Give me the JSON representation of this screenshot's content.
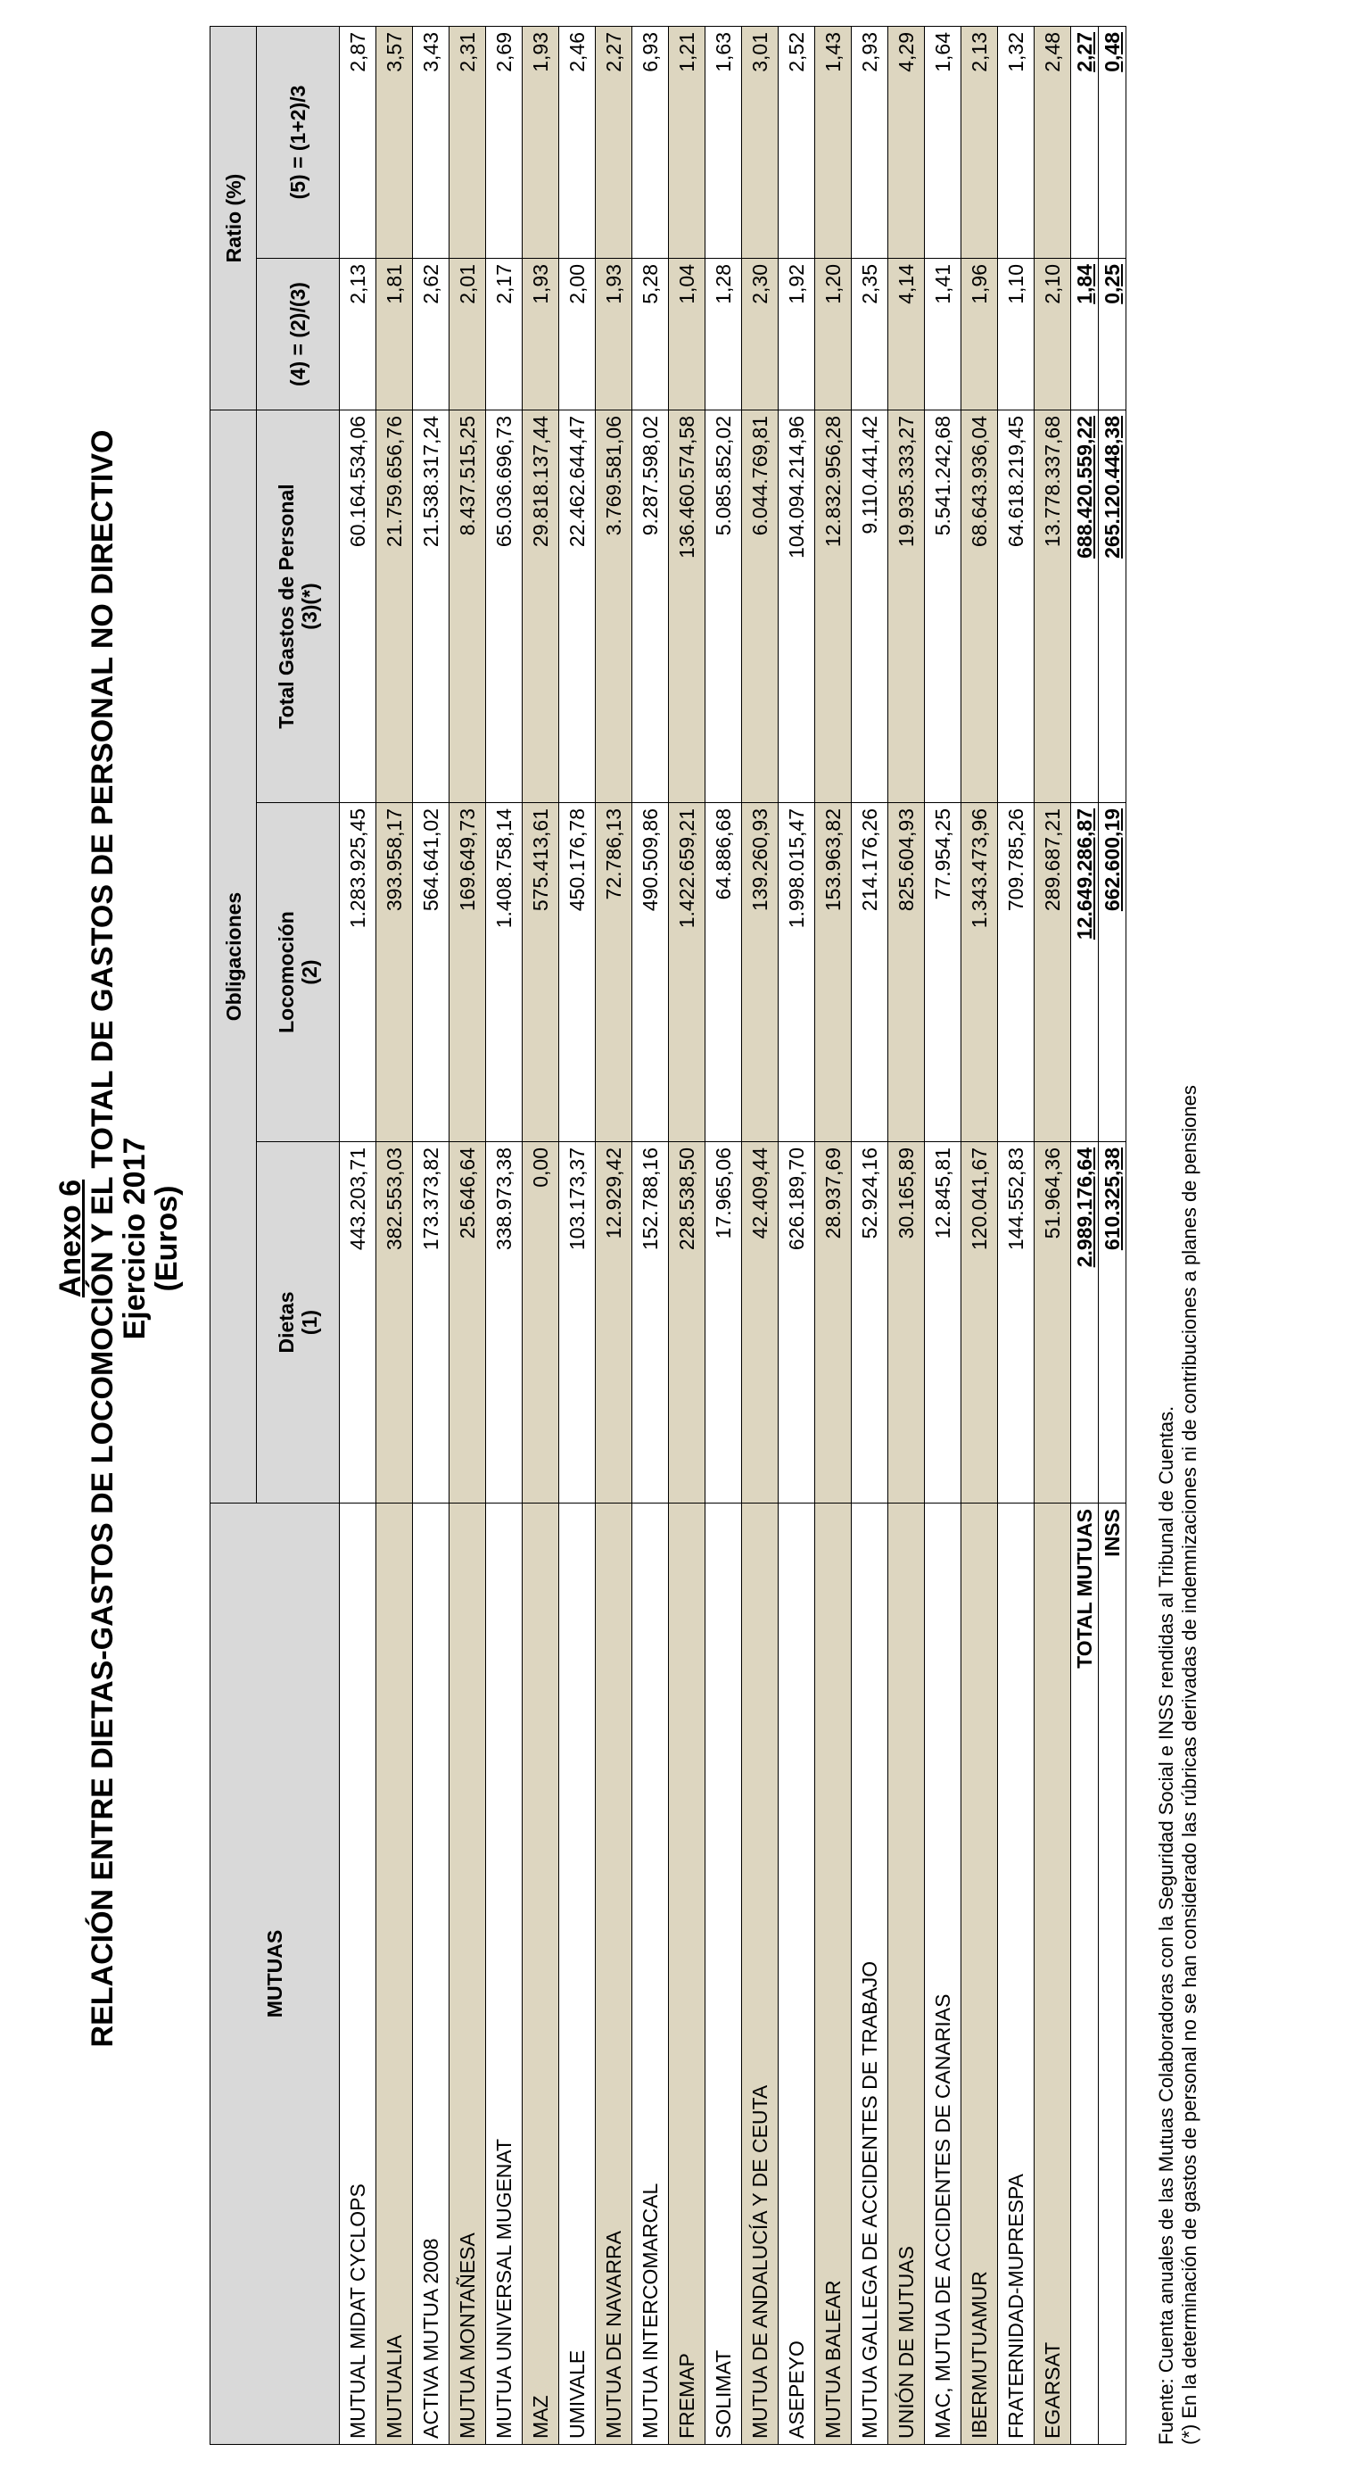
{
  "header": {
    "annex": "Anexo 6",
    "title": "RELACIÓN ENTRE DIETAS-GASTOS DE LOCOMOCIÓN Y EL TOTAL DE GASTOS DE PERSONAL NO DIRECTIVO",
    "year": "Ejercicio 2017",
    "unit": "(Euros)"
  },
  "table": {
    "group_headers": {
      "entity": "MUTUAS",
      "obligations": "Obligaciones",
      "ratio": "Ratio (%)"
    },
    "columns": [
      [
        "Dietas",
        "(1)"
      ],
      [
        "Locomoción",
        "(2)"
      ],
      [
        "Total Gastos de Personal",
        "(3)(*)"
      ],
      [
        "(4) = (2)/(3)"
      ],
      [
        "(5) = (1+2)/3"
      ]
    ],
    "rows": [
      [
        "MUTUAL MIDAT CYCLOPS",
        "443.203,71",
        "1.283.925,45",
        "60.164.534,06",
        "2,13",
        "2,87"
      ],
      [
        "MUTUALIA",
        "382.553,03",
        "393.958,17",
        "21.759.656,76",
        "1,81",
        "3,57"
      ],
      [
        "ACTIVA MUTUA 2008",
        "173.373,82",
        "564.641,02",
        "21.538.317,24",
        "2,62",
        "3,43"
      ],
      [
        "MUTUA MONTAÑESA",
        "25.646,64",
        "169.649,73",
        "8.437.515,25",
        "2,01",
        "2,31"
      ],
      [
        "MUTUA UNIVERSAL MUGENAT",
        "338.973,38",
        "1.408.758,14",
        "65.036.696,73",
        "2,17",
        "2,69"
      ],
      [
        "MAZ",
        "0,00",
        "575.413,61",
        "29.818.137,44",
        "1,93",
        "1,93"
      ],
      [
        "UMIVALE",
        "103.173,37",
        "450.176,78",
        "22.462.644,47",
        "2,00",
        "2,46"
      ],
      [
        "MUTUA DE NAVARRA",
        "12.929,42",
        "72.786,13",
        "3.769.581,06",
        "1,93",
        "2,27"
      ],
      [
        "MUTUA INTERCOMARCAL",
        "152.788,16",
        "490.509,86",
        "9.287.598,02",
        "5,28",
        "6,93"
      ],
      [
        "FREMAP",
        "228.538,50",
        "1.422.659,21",
        "136.460.574,58",
        "1,04",
        "1,21"
      ],
      [
        "SOLIMAT",
        "17.965,06",
        "64.886,68",
        "5.085.852,02",
        "1,28",
        "1,63"
      ],
      [
        "MUTUA DE ANDALUCÍA Y DE CEUTA",
        "42.409,44",
        "139.260,93",
        "6.044.769,81",
        "2,30",
        "3,01"
      ],
      [
        "ASEPEYO",
        "626.189,70",
        "1.998.015,47",
        "104.094.214,96",
        "1,92",
        "2,52"
      ],
      [
        "MUTUA BALEAR",
        "28.937,69",
        "153.963,82",
        "12.832.956,28",
        "1,20",
        "1,43"
      ],
      [
        "MUTUA GALLEGA DE ACCIDENTES DE TRABAJO",
        "52.924,16",
        "214.176,26",
        "9.110.441,42",
        "2,35",
        "2,93"
      ],
      [
        "UNIÓN DE MUTUAS",
        "30.165,89",
        "825.604,93",
        "19.935.333,27",
        "4,14",
        "4,29"
      ],
      [
        "MAC, MUTUA DE ACCIDENTES DE CANARIAS",
        "12.845,81",
        "77.954,25",
        "5.541.242,68",
        "1,41",
        "1,64"
      ],
      [
        "IBERMUTUAMUR",
        "120.041,67",
        "1.343.473,96",
        "68.643.936,04",
        "1,96",
        "2,13"
      ],
      [
        "FRATERNIDAD-MUPRESPA",
        "144.552,83",
        "709.785,26",
        "64.618.219,45",
        "1,10",
        "1,32"
      ],
      [
        "EGARSAT",
        "51.964,36",
        "289.687,21",
        "13.778.337,68",
        "2,10",
        "2,48"
      ]
    ],
    "totals": [
      [
        "TOTAL MUTUAS",
        "2.989.176,64",
        "12.649.286,87",
        "688.420.559,22",
        "1,84",
        "2,27"
      ],
      [
        "INSS",
        "610.325,38",
        "662.600,19",
        "265.120.448,38",
        "0,25",
        "0,48"
      ]
    ]
  },
  "footnotes": [
    "Fuente: Cuenta anuales de las Mutuas Colaboradoras con la Seguridad Social e INSS rendidas al Tribunal de Cuentas.",
    "(*) En la determinación de gastos de personal no se han considerado las rúbricas derivadas de indemnizaciones ni de contribuciones a planes de pensiones"
  ]
}
